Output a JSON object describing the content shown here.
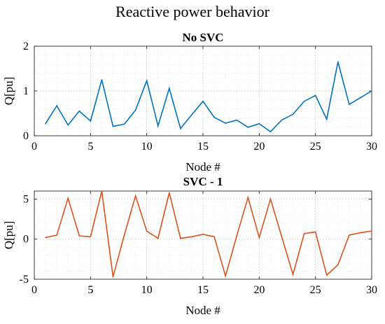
{
  "figure": {
    "title": "Reactive power behavior"
  },
  "chart_data": [
    {
      "type": "line",
      "title": "No SVC",
      "xlabel": "Node #",
      "ylabel": "Q[pu]",
      "xlim": [
        0,
        30
      ],
      "ylim": [
        0,
        2
      ],
      "xticks": [
        0,
        5,
        10,
        15,
        20,
        25,
        30
      ],
      "yticks": [
        0,
        1,
        2
      ],
      "grid": true,
      "color": "#0072BD",
      "x": [
        1,
        2,
        3,
        4,
        5,
        6,
        7,
        8,
        9,
        10,
        11,
        12,
        13,
        14,
        15,
        16,
        17,
        18,
        19,
        20,
        21,
        22,
        23,
        24,
        25,
        26,
        27,
        28,
        29,
        30
      ],
      "values": [
        0.27,
        0.67,
        0.24,
        0.55,
        0.33,
        1.25,
        0.21,
        0.26,
        0.57,
        1.23,
        0.22,
        1.06,
        0.16,
        0.47,
        0.77,
        0.41,
        0.28,
        0.35,
        0.19,
        0.27,
        0.09,
        0.35,
        0.48,
        0.77,
        0.9,
        0.37,
        1.65,
        0.7,
        0.85,
        1.0
      ]
    },
    {
      "type": "line",
      "title": "SVC - 1",
      "xlabel": "Node #",
      "ylabel": "Q[pu]",
      "xlim": [
        0,
        30
      ],
      "ylim": [
        -5,
        6
      ],
      "xticks": [
        0,
        5,
        10,
        15,
        20,
        25,
        30
      ],
      "yticks": [
        -5,
        0,
        5
      ],
      "grid": true,
      "color": "#D95319",
      "x": [
        1,
        2,
        3,
        4,
        5,
        6,
        7,
        8,
        9,
        10,
        11,
        12,
        13,
        14,
        15,
        16,
        17,
        18,
        19,
        20,
        21,
        22,
        23,
        24,
        25,
        26,
        27,
        28,
        29,
        30
      ],
      "values": [
        0.2,
        0.5,
        5.1,
        0.4,
        0.3,
        6.0,
        -4.7,
        0.5,
        5.4,
        1.0,
        0.1,
        5.8,
        0.1,
        0.3,
        0.6,
        0.3,
        -4.6,
        0.4,
        5.2,
        0.2,
        5.0,
        0.3,
        -4.4,
        0.7,
        0.9,
        -4.5,
        -3.2,
        0.5,
        0.8,
        1.0
      ]
    }
  ]
}
